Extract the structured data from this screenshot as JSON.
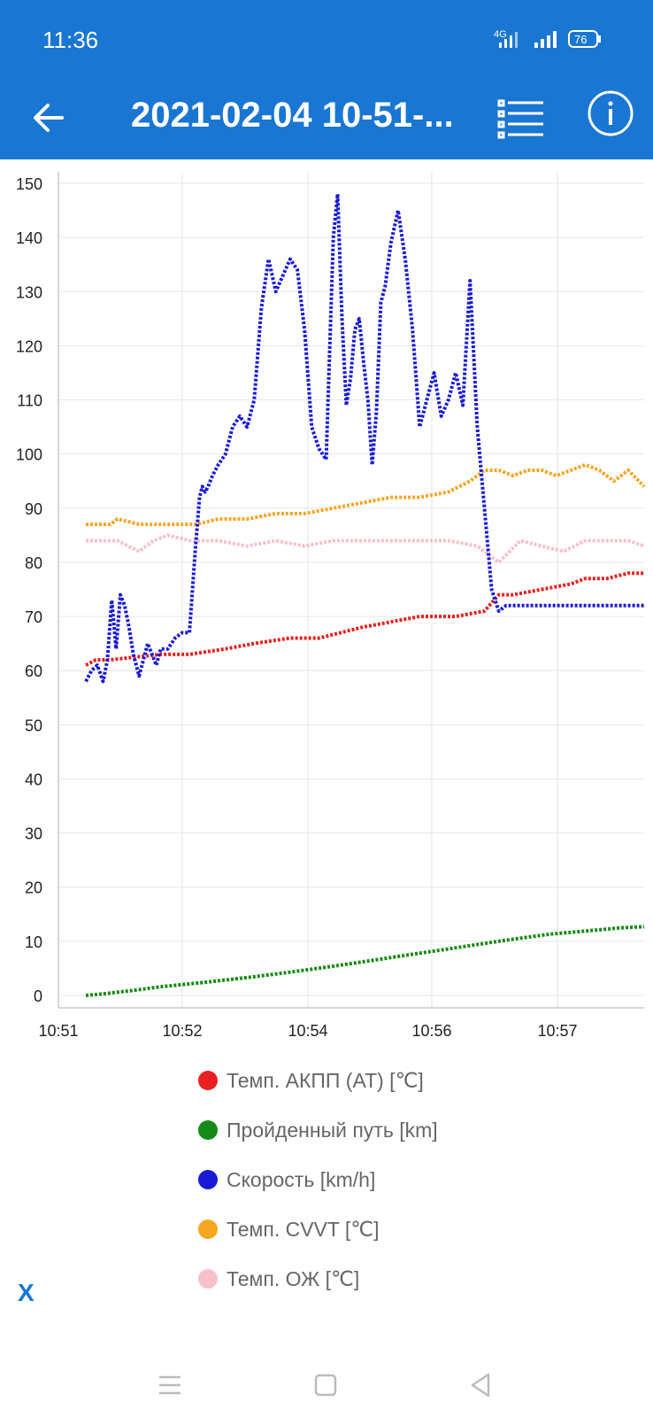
{
  "status": {
    "time": "11:36",
    "network": "4G",
    "battery": "76"
  },
  "appbar": {
    "title": "2021-02-04 10-51-...",
    "back_icon": "arrow-left-icon",
    "list_icon": "list-icon",
    "info_icon": "info-icon"
  },
  "colors": {
    "primary": "#1976d2",
    "at": "#e82020",
    "distance": "#168a16",
    "speed": "#1a1ad6",
    "cvvt": "#f5a623",
    "coolant": "#f8c0ca"
  },
  "chart_data": {
    "type": "line",
    "x_ticks": [
      "10:51",
      "10:52",
      "10:54",
      "10:56",
      "10:57"
    ],
    "ylim": [
      0,
      150
    ],
    "y_ticks": [
      "0",
      "10",
      "20",
      "30",
      "40",
      "50",
      "60",
      "70",
      "80",
      "90",
      "100",
      "110",
      "120",
      "130",
      "140",
      "150"
    ],
    "xlim": [
      "10:51:00",
      "10:57:36"
    ],
    "grid": true,
    "legend_position": "bottom",
    "series": [
      {
        "name": "Темп. АКПП (AT) [℃]",
        "color": "#e82020",
        "x": [
          "10:51:08",
          "10:51:15",
          "10:51:25",
          "10:52:00",
          "10:52:20",
          "10:52:45",
          "10:53:05",
          "10:53:30",
          "10:53:50",
          "10:54:05",
          "10:54:20",
          "10:54:40",
          "10:55:00",
          "10:55:25",
          "10:55:45",
          "10:55:55",
          "10:56:05",
          "10:56:25",
          "10:56:45",
          "10:56:55",
          "10:57:10",
          "10:57:25",
          "10:57:36"
        ],
        "y": [
          61,
          62,
          62,
          63,
          63,
          64,
          65,
          66,
          66,
          67,
          68,
          69,
          70,
          70,
          71,
          74,
          74,
          75,
          76,
          77,
          77,
          78,
          78
        ]
      },
      {
        "name": "Пройденный путь [km]",
        "color": "#168a16",
        "x": [
          "10:51:08",
          "10:51:20",
          "10:51:40",
          "10:52:00",
          "10:52:30",
          "10:53:00",
          "10:53:30",
          "10:54:00",
          "10:54:30",
          "10:55:00",
          "10:55:30",
          "10:56:00",
          "10:56:30",
          "10:57:00",
          "10:57:20",
          "10:57:36"
        ],
        "y": [
          0,
          0.3,
          0.9,
          1.6,
          2.4,
          3.3,
          4.3,
          5.4,
          6.6,
          7.8,
          9.0,
          10.2,
          11.3,
          12.0,
          12.5,
          12.7
        ]
      },
      {
        "name": "Скорость [km/h]",
        "color": "#1a1ad6",
        "x": [
          "10:51:08",
          "10:51:12",
          "10:51:16",
          "10:51:20",
          "10:51:23",
          "10:51:26",
          "10:51:29",
          "10:51:32",
          "10:51:35",
          "10:51:38",
          "10:51:41",
          "10:51:45",
          "10:51:48",
          "10:51:51",
          "10:51:54",
          "10:51:57",
          "10:52:00",
          "10:52:05",
          "10:52:10",
          "10:52:15",
          "10:52:20",
          "10:52:24",
          "10:52:27",
          "10:52:29",
          "10:52:31",
          "10:52:33",
          "10:52:36",
          "10:52:40",
          "10:52:45",
          "10:52:50",
          "10:52:55",
          "10:53:00",
          "10:53:05",
          "10:53:10",
          "10:53:15",
          "10:53:20",
          "10:53:25",
          "10:53:30",
          "10:53:35",
          "10:53:40",
          "10:53:45",
          "10:53:50",
          "10:53:55",
          "10:54:00",
          "10:54:03",
          "10:54:06",
          "10:54:09",
          "10:54:12",
          "10:54:15",
          "10:54:18",
          "10:54:21",
          "10:54:24",
          "10:54:27",
          "10:54:30",
          "10:54:33",
          "10:54:36",
          "10:54:40",
          "10:54:45",
          "10:54:50",
          "10:54:55",
          "10:55:00",
          "10:55:05",
          "10:55:10",
          "10:55:15",
          "10:55:20",
          "10:55:25",
          "10:55:30",
          "10:55:35",
          "10:55:40",
          "10:55:45",
          "10:55:50",
          "10:55:55",
          "10:56:00",
          "10:56:05",
          "10:56:10",
          "10:56:15",
          "10:56:20",
          "10:56:25",
          "10:56:30",
          "10:56:35",
          "10:56:40",
          "10:56:45",
          "10:56:50",
          "10:56:55",
          "10:57:00",
          "10:57:05",
          "10:57:10",
          "10:57:15",
          "10:57:20",
          "10:57:25",
          "10:57:30",
          "10:57:36"
        ],
        "y": [
          58,
          60,
          61,
          58,
          62,
          73,
          64,
          74,
          72,
          68,
          63,
          59,
          62,
          65,
          63,
          61,
          64,
          64,
          66,
          67,
          67,
          82,
          92,
          94,
          93,
          94,
          96,
          98,
          100,
          105,
          107,
          105,
          110,
          127,
          136,
          130,
          133,
          136,
          134,
          123,
          105,
          101,
          99,
          140,
          148,
          125,
          109,
          114,
          123,
          125,
          117,
          110,
          98,
          108,
          128,
          131,
          139,
          145,
          136,
          123,
          105,
          110,
          115,
          107,
          110,
          115,
          109,
          132,
          105,
          90,
          75,
          71,
          72,
          72,
          72,
          72,
          72,
          72,
          72,
          72,
          72,
          72,
          72,
          72,
          72,
          72,
          72,
          72,
          72,
          72,
          72,
          72
        ]
      },
      {
        "name": "Темп. CVVT [℃]",
        "color": "#f5a623",
        "x": [
          "10:51:08",
          "10:51:25",
          "10:51:30",
          "10:51:45",
          "10:52:00",
          "10:52:25",
          "10:52:40",
          "10:52:50",
          "10:53:00",
          "10:53:20",
          "10:53:40",
          "10:54:00",
          "10:54:20",
          "10:54:40",
          "10:55:00",
          "10:55:20",
          "10:55:35",
          "10:55:45",
          "10:55:55",
          "10:56:05",
          "10:56:15",
          "10:56:25",
          "10:56:35",
          "10:56:45",
          "10:56:55",
          "10:57:05",
          "10:57:15",
          "10:57:25",
          "10:57:36"
        ],
        "y": [
          87,
          87,
          88,
          87,
          87,
          87,
          88,
          88,
          88,
          89,
          89,
          90,
          91,
          92,
          92,
          93,
          95,
          97,
          97,
          96,
          97,
          97,
          96,
          97,
          98,
          97,
          95,
          97,
          94
        ]
      },
      {
        "name": "Темп. ОЖ [℃]",
        "color": "#f8c0ca",
        "x": [
          "10:51:08",
          "10:51:30",
          "10:51:45",
          "10:51:55",
          "10:52:05",
          "10:52:20",
          "10:52:40",
          "10:53:00",
          "10:53:20",
          "10:53:40",
          "10:54:00",
          "10:54:20",
          "10:54:40",
          "10:55:00",
          "10:55:20",
          "10:55:40",
          "10:55:55",
          "10:56:10",
          "10:56:25",
          "10:56:40",
          "10:56:55",
          "10:57:10",
          "10:57:25",
          "10:57:36"
        ],
        "y": [
          84,
          84,
          82,
          84,
          85,
          84,
          84,
          83,
          84,
          83,
          84,
          84,
          84,
          84,
          84,
          83,
          80,
          84,
          83,
          82,
          84,
          84,
          84,
          83
        ]
      }
    ]
  },
  "legend_items": [
    "Темп. АКПП (AT) [℃]",
    "Пройденный путь [km]",
    "Скорость [km/h]",
    "Темп. CVVT [℃]",
    "Темп. ОЖ [℃]"
  ],
  "close_label": "X",
  "navbar": {
    "menu_icon": "menu-icon",
    "home_icon": "home-square-icon",
    "back_icon": "back-triangle-icon"
  }
}
